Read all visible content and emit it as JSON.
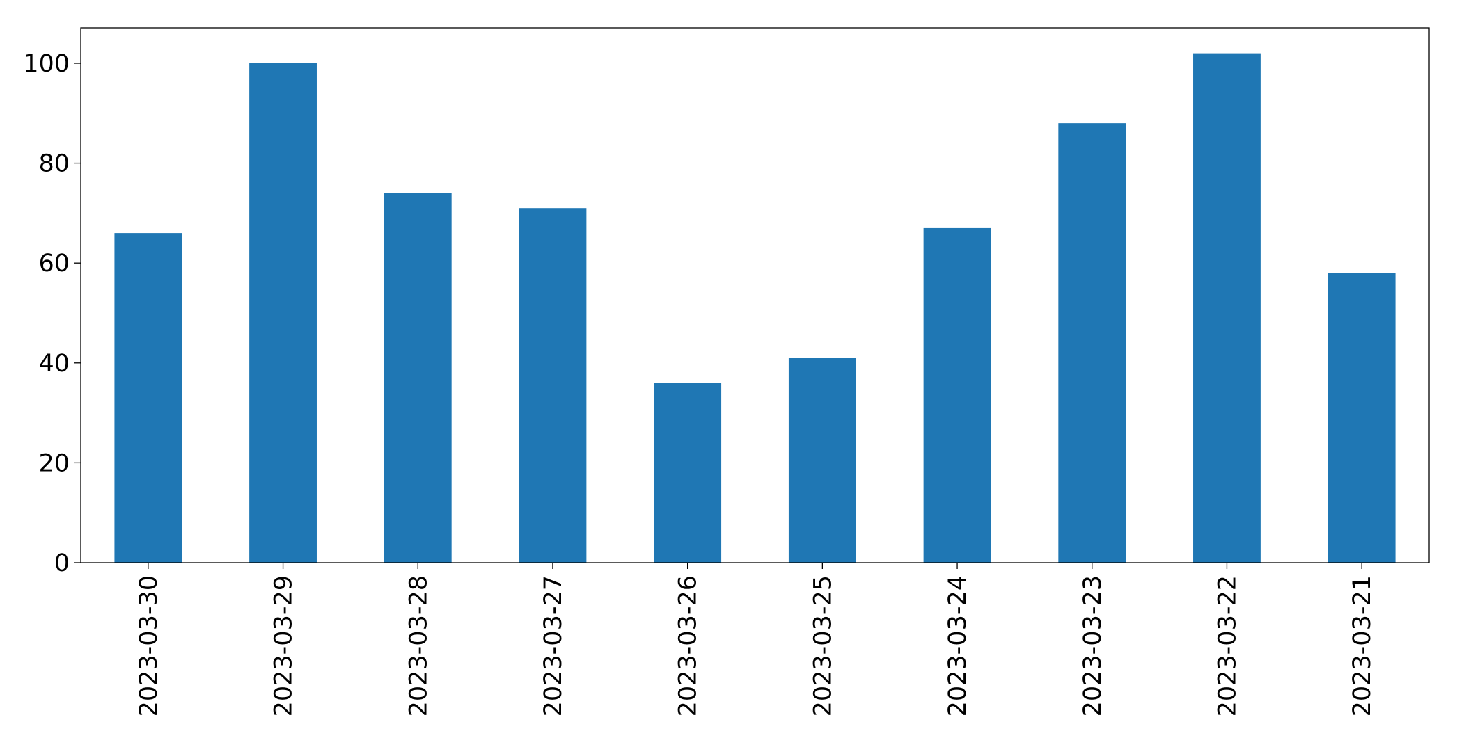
{
  "chart_data": {
    "type": "bar",
    "categories": [
      "2023-03-30",
      "2023-03-29",
      "2023-03-28",
      "2023-03-27",
      "2023-03-26",
      "2023-03-25",
      "2023-03-24",
      "2023-03-23",
      "2023-03-22",
      "2023-03-21"
    ],
    "values": [
      66,
      100,
      74,
      71,
      36,
      41,
      67,
      88,
      102,
      58
    ],
    "color": "#1f77b4",
    "ylim": [
      0,
      107.1
    ],
    "yticks": [
      0,
      20,
      40,
      60,
      80,
      100
    ],
    "grid": false
  }
}
